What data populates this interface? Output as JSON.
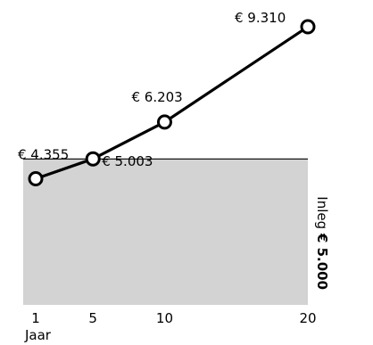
{
  "chart_data": {
    "type": "line",
    "title": "",
    "xlabel": "Jaar",
    "ylabel": "",
    "x": [
      1,
      5,
      10,
      20
    ],
    "x_ticks": [
      "1",
      "5",
      "10",
      "20"
    ],
    "values": [
      4355,
      5003,
      6203,
      9310
    ],
    "data_labels": [
      "€ 4.355",
      "€ 5.003",
      "€ 6.203",
      "€ 9.310"
    ],
    "baseline": {
      "value": 5000,
      "label": "Inleg € 5.000",
      "label_prefix": "Inleg",
      "label_amount": "€ 5.000",
      "fill_color": "#d3d3d3"
    },
    "xlim": [
      1,
      20
    ],
    "ylim": [
      0,
      9500
    ],
    "grid": false,
    "legend": "none",
    "line_color": "#000000",
    "marker_fill": "#ffffff"
  }
}
